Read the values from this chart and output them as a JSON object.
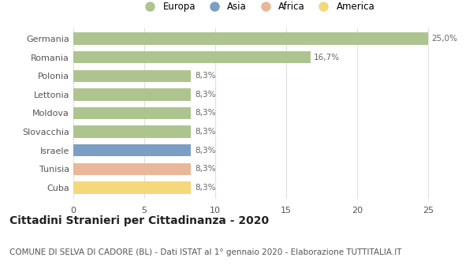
{
  "categories": [
    "Germania",
    "Romania",
    "Polonia",
    "Lettonia",
    "Moldova",
    "Slovacchia",
    "Israele",
    "Tunisia",
    "Cuba"
  ],
  "values": [
    25.0,
    16.7,
    8.3,
    8.3,
    8.3,
    8.3,
    8.3,
    8.3,
    8.3
  ],
  "bar_colors": [
    "#aec48f",
    "#aec48f",
    "#aec48f",
    "#aec48f",
    "#aec48f",
    "#aec48f",
    "#7b9fc4",
    "#e8b898",
    "#f5d87a"
  ],
  "labels": [
    "25,0%",
    "16,7%",
    "8,3%",
    "8,3%",
    "8,3%",
    "8,3%",
    "8,3%",
    "8,3%",
    "8,3%"
  ],
  "xlim": [
    0,
    26
  ],
  "xticks": [
    0,
    5,
    10,
    15,
    20,
    25
  ],
  "legend_labels": [
    "Europa",
    "Asia",
    "Africa",
    "America"
  ],
  "legend_colors": [
    "#aec48f",
    "#7b9fc4",
    "#e8b898",
    "#f5d87a"
  ],
  "title": "Cittadini Stranieri per Cittadinanza - 2020",
  "subtitle": "COMUNE DI SELVA DI CADORE (BL) - Dati ISTAT al 1° gennaio 2020 - Elaborazione TUTTITALIA.IT",
  "background_color": "#ffffff",
  "bar_height": 0.65,
  "title_fontsize": 10,
  "subtitle_fontsize": 7.5,
  "label_fontsize": 7.5,
  "tick_fontsize": 8,
  "legend_fontsize": 8.5
}
